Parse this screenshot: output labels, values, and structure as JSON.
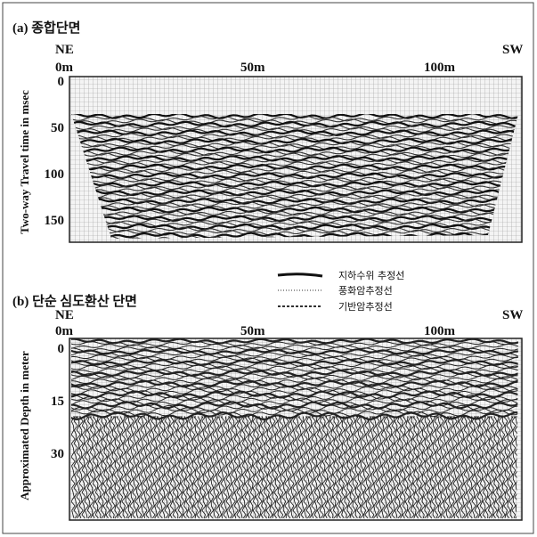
{
  "panels": [
    {
      "label": "(a) 종합단면",
      "left_end": "NE",
      "right_end": "SW",
      "x_labels": [
        "0m",
        "50m",
        "100m"
      ],
      "y_labels": [
        "0",
        "50",
        "100",
        "150"
      ],
      "y_title": "Two-way Travel time in msec"
    },
    {
      "label": "(b) 단순 심도환산 단면",
      "left_end": "NE",
      "right_end": "SW",
      "x_labels": [
        "0m",
        "50m",
        "100m"
      ],
      "y_labels": [
        "0",
        "15",
        "30"
      ],
      "y_title": "Approximated Depth in meter"
    }
  ],
  "legend": [
    "지하수위 추정선",
    "풍화암추정선",
    "기반암추정선"
  ]
}
